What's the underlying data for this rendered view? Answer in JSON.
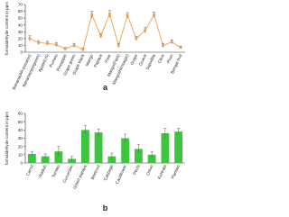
{
  "chart_data": [
    {
      "type": "line",
      "label": "a",
      "ylabel": "formaldehyde content in ppm",
      "color": "#f0a04b",
      "categories": [
        "Banana(AR-posatso)",
        "Banana(ripe/green)",
        "Apple(US)",
        "Pomelo",
        "Pineapple",
        "Grape green",
        "Grape black",
        "Mango",
        "Papaya",
        "Pear",
        "Mango(Fazli)",
        "Mango(Himsagar)",
        "Grape",
        "Guava",
        "Sapodilla",
        "Olive",
        "Plum",
        "Bengal fruit"
      ],
      "values": [
        20,
        14,
        13,
        11,
        5,
        10,
        4,
        55,
        24,
        56,
        10,
        54,
        20,
        32,
        55,
        10,
        15,
        7
      ],
      "errors": [
        4,
        3,
        3,
        3,
        2,
        3,
        2,
        5,
        3,
        5,
        3,
        4,
        3,
        4,
        4,
        3,
        3,
        2
      ],
      "ylim": [
        0,
        70
      ],
      "yticks": [
        0,
        10,
        20,
        30,
        40,
        50,
        60,
        70
      ]
    },
    {
      "type": "bar",
      "label": "b",
      "ylabel": "formaldehyde content in ppm",
      "color": "#3ec43e",
      "categories": [
        "Carrot",
        "Radish",
        "Tomato",
        "Cucumber",
        "Green papaya",
        "Beetroot",
        "Cabbage",
        "Cauliflower",
        "Pechi",
        "Onion",
        "Kohlrabi",
        "Plantain"
      ],
      "values": [
        11,
        8,
        14,
        5,
        40,
        37,
        8,
        30,
        17,
        10,
        36,
        38
      ],
      "errors": [
        3,
        3,
        6,
        3,
        5,
        4,
        4,
        5,
        5,
        4,
        6,
        4
      ],
      "ylim": [
        0,
        60
      ],
      "yticks": [
        0,
        10,
        20,
        30,
        40,
        50,
        60
      ]
    }
  ]
}
